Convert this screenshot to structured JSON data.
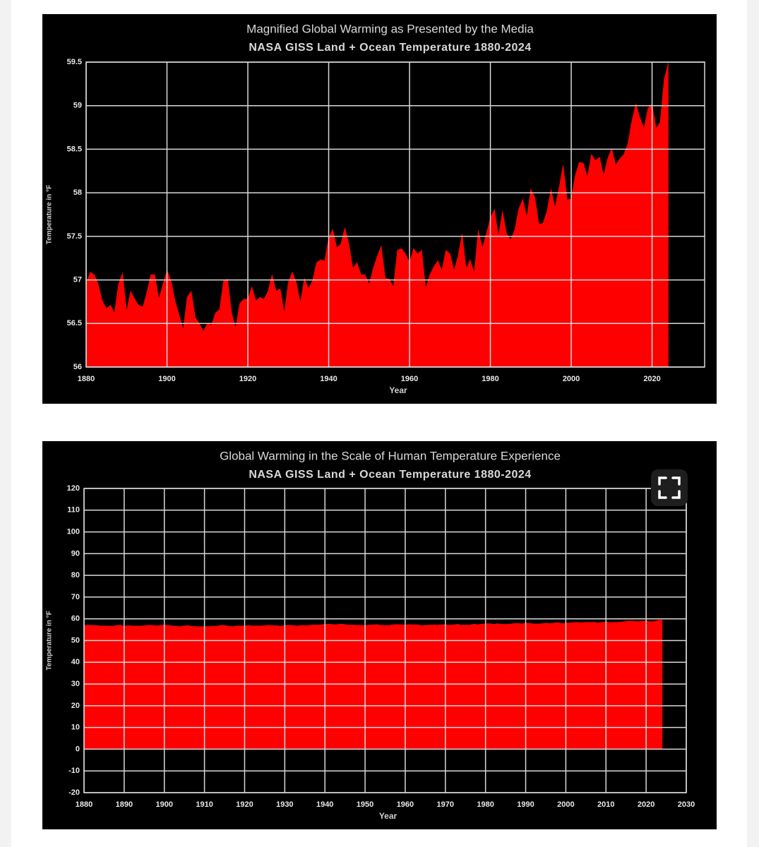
{
  "chart_data": [
    {
      "type": "area",
      "title": "Magnified Global Warming as Presented by the Media",
      "subtitle": "NASA GISS Land + Ocean Temperature 1880-2024",
      "x_label": "Year",
      "y_label": "Temperature in °F",
      "color": "#ff0000",
      "grid": true,
      "xlim": [
        1880,
        2033
      ],
      "xticks": [
        1880,
        1900,
        1920,
        1940,
        1960,
        1980,
        2000,
        2020
      ],
      "ylim": [
        56,
        59.5
      ],
      "yticks": [
        56,
        56.5,
        57,
        57.5,
        58,
        58.5,
        59,
        59.5
      ],
      "x": [
        1880,
        1881,
        1882,
        1883,
        1884,
        1885,
        1886,
        1887,
        1888,
        1889,
        1890,
        1891,
        1892,
        1893,
        1894,
        1895,
        1896,
        1897,
        1898,
        1899,
        1900,
        1901,
        1902,
        1903,
        1904,
        1905,
        1906,
        1907,
        1908,
        1909,
        1910,
        1911,
        1912,
        1913,
        1914,
        1915,
        1916,
        1917,
        1918,
        1919,
        1920,
        1921,
        1922,
        1923,
        1924,
        1925,
        1926,
        1927,
        1928,
        1929,
        1930,
        1931,
        1932,
        1933,
        1934,
        1935,
        1936,
        1937,
        1938,
        1939,
        1940,
        1941,
        1942,
        1943,
        1944,
        1945,
        1946,
        1947,
        1948,
        1949,
        1950,
        1951,
        1952,
        1953,
        1954,
        1955,
        1956,
        1957,
        1958,
        1959,
        1960,
        1961,
        1962,
        1963,
        1964,
        1965,
        1966,
        1967,
        1968,
        1969,
        1970,
        1971,
        1972,
        1973,
        1974,
        1975,
        1976,
        1977,
        1978,
        1979,
        1980,
        1981,
        1982,
        1983,
        1984,
        1985,
        1986,
        1987,
        1988,
        1989,
        1990,
        1991,
        1992,
        1993,
        1994,
        1995,
        1996,
        1997,
        1998,
        1999,
        2000,
        2001,
        2002,
        2003,
        2004,
        2005,
        2006,
        2007,
        2008,
        2009,
        2010,
        2011,
        2012,
        2013,
        2014,
        2015,
        2016,
        2017,
        2018,
        2019,
        2020,
        2021,
        2022,
        2023,
        2024
      ],
      "values": [
        56.95,
        57.09,
        57.06,
        56.95,
        56.76,
        56.67,
        56.71,
        56.62,
        56.95,
        57.08,
        56.64,
        56.87,
        56.78,
        56.71,
        56.69,
        56.85,
        57.06,
        57.06,
        56.78,
        56.95,
        57.11,
        56.99,
        56.76,
        56.6,
        56.43,
        56.8,
        56.87,
        56.57,
        56.5,
        56.41,
        56.5,
        56.48,
        56.62,
        56.66,
        56.99,
        57.01,
        56.62,
        56.45,
        56.73,
        56.78,
        56.78,
        56.92,
        56.76,
        56.8,
        56.78,
        56.87,
        57.06,
        56.87,
        56.9,
        56.62,
        56.97,
        57.09,
        56.97,
        56.74,
        57.02,
        56.9,
        56.99,
        57.2,
        57.23,
        57.22,
        57.48,
        57.58,
        57.37,
        57.41,
        57.6,
        57.41,
        57.13,
        57.2,
        57.06,
        57.06,
        56.95,
        57.13,
        57.27,
        57.39,
        57.02,
        57.01,
        56.92,
        57.34,
        57.36,
        57.3,
        57.2,
        57.36,
        57.3,
        57.34,
        56.9,
        57.06,
        57.15,
        57.22,
        57.11,
        57.34,
        57.3,
        57.11,
        57.27,
        57.53,
        57.13,
        57.23,
        57.08,
        57.57,
        57.37,
        57.53,
        57.71,
        57.81,
        57.5,
        57.79,
        57.53,
        57.46,
        57.57,
        57.81,
        57.93,
        57.72,
        58.04,
        57.95,
        57.64,
        57.65,
        57.79,
        58.04,
        57.83,
        58.06,
        58.32,
        57.92,
        57.93,
        58.2,
        58.35,
        58.34,
        58.18,
        58.44,
        58.37,
        58.41,
        58.2,
        58.39,
        58.51,
        58.32,
        58.39,
        58.44,
        58.56,
        58.83,
        59.02,
        58.86,
        58.74,
        58.97,
        59.02,
        58.74,
        58.81,
        59.3,
        59.49
      ]
    },
    {
      "type": "area",
      "title": "Global Warming in the Scale of Human Temperature Experience",
      "subtitle": "NASA GISS Land + Ocean Temperature 1880-2024",
      "x_label": "Year",
      "y_label": "Temperature in °F",
      "color": "#ff0000",
      "grid": true,
      "xlim": [
        1880,
        2030
      ],
      "xticks": [
        1880,
        1890,
        1900,
        1910,
        1920,
        1930,
        1940,
        1950,
        1960,
        1970,
        1980,
        1990,
        2000,
        2010,
        2020,
        2030
      ],
      "ylim": [
        -20,
        120
      ],
      "yticks": [
        -20,
        -10,
        0,
        10,
        20,
        30,
        40,
        50,
        60,
        70,
        80,
        90,
        100,
        110,
        120
      ],
      "x": [
        1880,
        1881,
        1882,
        1883,
        1884,
        1885,
        1886,
        1887,
        1888,
        1889,
        1890,
        1891,
        1892,
        1893,
        1894,
        1895,
        1896,
        1897,
        1898,
        1899,
        1900,
        1901,
        1902,
        1903,
        1904,
        1905,
        1906,
        1907,
        1908,
        1909,
        1910,
        1911,
        1912,
        1913,
        1914,
        1915,
        1916,
        1917,
        1918,
        1919,
        1920,
        1921,
        1922,
        1923,
        1924,
        1925,
        1926,
        1927,
        1928,
        1929,
        1930,
        1931,
        1932,
        1933,
        1934,
        1935,
        1936,
        1937,
        1938,
        1939,
        1940,
        1941,
        1942,
        1943,
        1944,
        1945,
        1946,
        1947,
        1948,
        1949,
        1950,
        1951,
        1952,
        1953,
        1954,
        1955,
        1956,
        1957,
        1958,
        1959,
        1960,
        1961,
        1962,
        1963,
        1964,
        1965,
        1966,
        1967,
        1968,
        1969,
        1970,
        1971,
        1972,
        1973,
        1974,
        1975,
        1976,
        1977,
        1978,
        1979,
        1980,
        1981,
        1982,
        1983,
        1984,
        1985,
        1986,
        1987,
        1988,
        1989,
        1990,
        1991,
        1992,
        1993,
        1994,
        1995,
        1996,
        1997,
        1998,
        1999,
        2000,
        2001,
        2002,
        2003,
        2004,
        2005,
        2006,
        2007,
        2008,
        2009,
        2010,
        2011,
        2012,
        2013,
        2014,
        2015,
        2016,
        2017,
        2018,
        2019,
        2020,
        2021,
        2022,
        2023,
        2024
      ],
      "values": [
        56.95,
        57.09,
        57.06,
        56.95,
        56.76,
        56.67,
        56.71,
        56.62,
        56.95,
        57.08,
        56.64,
        56.87,
        56.78,
        56.71,
        56.69,
        56.85,
        57.06,
        57.06,
        56.78,
        56.95,
        57.11,
        56.99,
        56.76,
        56.6,
        56.43,
        56.8,
        56.87,
        56.57,
        56.5,
        56.41,
        56.5,
        56.48,
        56.62,
        56.66,
        56.99,
        57.01,
        56.62,
        56.45,
        56.73,
        56.78,
        56.78,
        56.92,
        56.76,
        56.8,
        56.78,
        56.87,
        57.06,
        56.87,
        56.9,
        56.62,
        56.97,
        57.09,
        56.97,
        56.74,
        57.02,
        56.9,
        56.99,
        57.2,
        57.23,
        57.22,
        57.48,
        57.58,
        57.37,
        57.41,
        57.6,
        57.41,
        57.13,
        57.2,
        57.06,
        57.06,
        56.95,
        57.13,
        57.27,
        57.39,
        57.02,
        57.01,
        56.92,
        57.34,
        57.36,
        57.3,
        57.2,
        57.36,
        57.3,
        57.34,
        56.9,
        57.06,
        57.15,
        57.22,
        57.11,
        57.34,
        57.3,
        57.11,
        57.27,
        57.53,
        57.13,
        57.23,
        57.08,
        57.57,
        57.37,
        57.53,
        57.71,
        57.81,
        57.5,
        57.79,
        57.53,
        57.46,
        57.57,
        57.81,
        57.93,
        57.72,
        58.04,
        57.95,
        57.64,
        57.65,
        57.79,
        58.04,
        57.83,
        58.06,
        58.32,
        57.92,
        57.93,
        58.2,
        58.35,
        58.34,
        58.18,
        58.44,
        58.37,
        58.41,
        58.2,
        58.39,
        58.51,
        58.32,
        58.39,
        58.44,
        58.56,
        58.83,
        59.02,
        58.86,
        58.74,
        58.97,
        59.02,
        58.74,
        58.81,
        59.3,
        59.49
      ]
    }
  ]
}
